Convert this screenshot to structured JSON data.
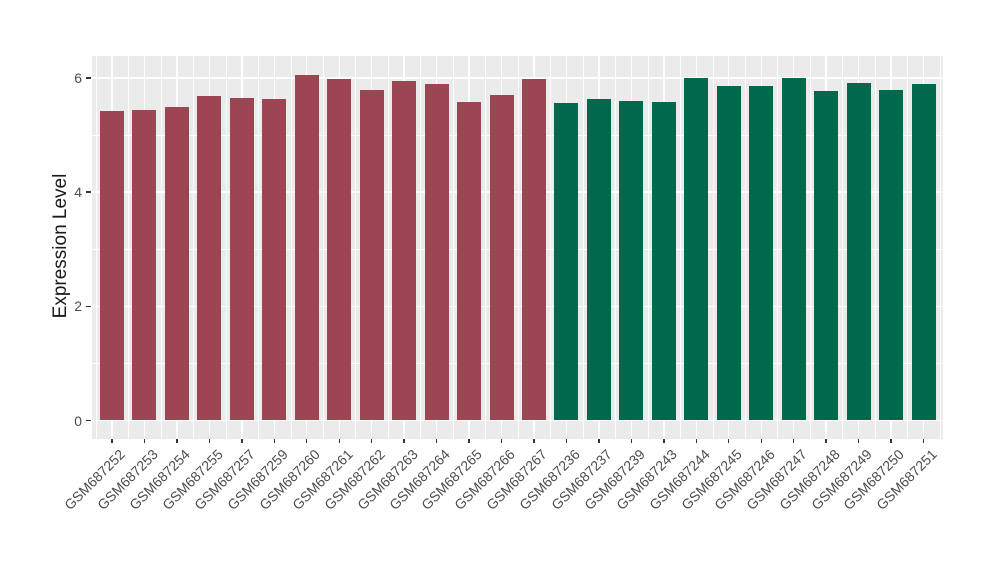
{
  "chart_data": {
    "type": "bar",
    "title": "",
    "xlabel": "",
    "ylabel": "Expression Level",
    "ylim": [
      0,
      6.38
    ],
    "yticks": [
      0,
      2,
      4,
      6
    ],
    "yticks_minor": [
      1,
      3,
      5
    ],
    "grid": "on",
    "legend": "none",
    "panel_background": "#EBEBEB",
    "gridline_color": "#FFFFFF",
    "group_colors": {
      "group1": "#9C4553",
      "group2": "#00694D"
    },
    "categories": [
      "GSM687252",
      "GSM687253",
      "GSM687254",
      "GSM687255",
      "GSM687257",
      "GSM687259",
      "GSM687260",
      "GSM687261",
      "GSM687262",
      "GSM687263",
      "GSM687264",
      "GSM687265",
      "GSM687266",
      "GSM687267",
      "GSM687236",
      "GSM687237",
      "GSM687239",
      "GSM687243",
      "GSM687244",
      "GSM687245",
      "GSM687246",
      "GSM687247",
      "GSM687248",
      "GSM687249",
      "GSM687250",
      "GSM687251"
    ],
    "values": [
      5.42,
      5.44,
      5.49,
      5.69,
      5.65,
      5.63,
      6.05,
      5.98,
      5.79,
      5.94,
      5.9,
      5.57,
      5.7,
      5.98,
      5.56,
      5.63,
      5.6,
      5.57,
      6.0,
      5.85,
      5.85,
      5.99,
      5.77,
      5.91,
      5.79,
      5.9
    ],
    "groups": [
      "group1",
      "group1",
      "group1",
      "group1",
      "group1",
      "group1",
      "group1",
      "group1",
      "group1",
      "group1",
      "group1",
      "group1",
      "group1",
      "group1",
      "group2",
      "group2",
      "group2",
      "group2",
      "group2",
      "group2",
      "group2",
      "group2",
      "group2",
      "group2",
      "group2",
      "group2"
    ]
  }
}
